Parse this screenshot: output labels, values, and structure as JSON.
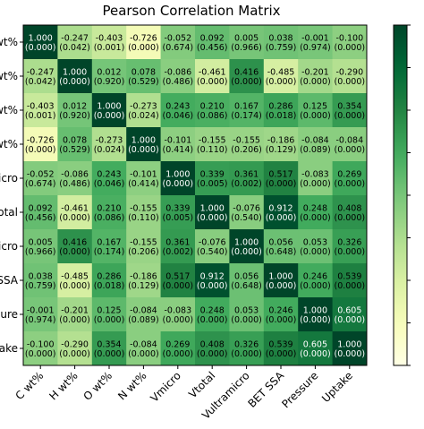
{
  "chart_data": {
    "type": "heatmap",
    "title": "Pearson Correlation Matrix",
    "row_labels": [
      "C wt%",
      "H wt%",
      "O wt%",
      "N wt%",
      "Vmicro",
      "Vtotal",
      "Vultramicro",
      "BET SSA",
      "Pressure",
      "Uptake"
    ],
    "col_labels": [
      "C wt%",
      "H wt%",
      "O wt%",
      "N wt%",
      "Vmicro",
      "Vtotal",
      "Vultramicro",
      "BET SSA",
      "Pressure",
      "Uptake"
    ],
    "values": [
      [
        1.0,
        -0.247,
        -0.403,
        -0.726,
        -0.052,
        0.092,
        0.005,
        0.038,
        -0.001,
        -0.1
      ],
      [
        -0.247,
        1.0,
        0.012,
        0.078,
        -0.086,
        -0.461,
        0.416,
        -0.485,
        -0.201,
        -0.29
      ],
      [
        -0.403,
        0.012,
        1.0,
        -0.273,
        0.243,
        0.21,
        0.167,
        0.286,
        0.125,
        0.354
      ],
      [
        -0.726,
        0.078,
        -0.273,
        1.0,
        -0.101,
        -0.155,
        -0.155,
        -0.186,
        -0.084,
        -0.084
      ],
      [
        -0.052,
        -0.086,
        0.243,
        -0.101,
        1.0,
        0.339,
        0.361,
        0.517,
        -0.083,
        0.269
      ],
      [
        0.092,
        -0.461,
        0.21,
        -0.155,
        0.339,
        1.0,
        -0.076,
        0.912,
        0.248,
        0.408
      ],
      [
        0.005,
        0.416,
        0.167,
        -0.155,
        0.361,
        -0.076,
        1.0,
        0.056,
        0.053,
        0.326
      ],
      [
        0.038,
        -0.485,
        0.286,
        -0.186,
        0.517,
        0.912,
        0.056,
        1.0,
        0.246,
        0.539
      ],
      [
        -0.001,
        -0.201,
        0.125,
        -0.084,
        -0.083,
        0.248,
        0.053,
        0.246,
        1.0,
        0.605
      ],
      [
        -0.1,
        -0.29,
        0.354,
        -0.084,
        0.269,
        0.408,
        0.326,
        0.539,
        0.605,
        1.0
      ]
    ],
    "pvalues": [
      [
        "0.000",
        "0.042",
        "0.001",
        "0.000",
        "0.674",
        "0.456",
        "0.966",
        "0.759",
        "0.974",
        "0.000"
      ],
      [
        "0.042",
        "0.000",
        "0.920",
        "0.529",
        "0.486",
        "0.000",
        "0.000",
        "0.000",
        "0.000",
        "0.000"
      ],
      [
        "0.001",
        "0.920",
        "0.000",
        "0.024",
        "0.046",
        "0.086",
        "0.174",
        "0.018",
        "0.000",
        "0.000"
      ],
      [
        "0.000",
        "0.529",
        "0.024",
        "0.000",
        "0.414",
        "0.110",
        "0.206",
        "0.129",
        "0.089",
        "0.000"
      ],
      [
        "0.674",
        "0.486",
        "0.046",
        "0.414",
        "0.000",
        "0.005",
        "0.002",
        "0.000",
        "0.000",
        "0.000"
      ],
      [
        "0.456",
        "0.000",
        "0.086",
        "0.110",
        "0.005",
        "0.000",
        "0.540",
        "0.000",
        "0.000",
        "0.000"
      ],
      [
        "0.966",
        "0.000",
        "0.174",
        "0.206",
        "0.002",
        "0.540",
        "0.000",
        "0.648",
        "0.000",
        "0.000"
      ],
      [
        "0.759",
        "0.000",
        "0.018",
        "0.129",
        "0.000",
        "0.000",
        "0.648",
        "0.000",
        "0.000",
        "0.000"
      ],
      [
        "0.974",
        "0.000",
        "0.000",
        "0.089",
        "0.000",
        "0.000",
        "0.000",
        "0.000",
        "0.000",
        "0.000"
      ],
      [
        "0.000",
        "0.000",
        "0.000",
        "0.000",
        "0.000",
        "0.000",
        "0.000",
        "0.000",
        "0.000",
        "0.000"
      ]
    ],
    "colormap": "YlGn",
    "value_range": [
      -1,
      1
    ],
    "colorbar": true,
    "grid": false,
    "legend": "none"
  }
}
